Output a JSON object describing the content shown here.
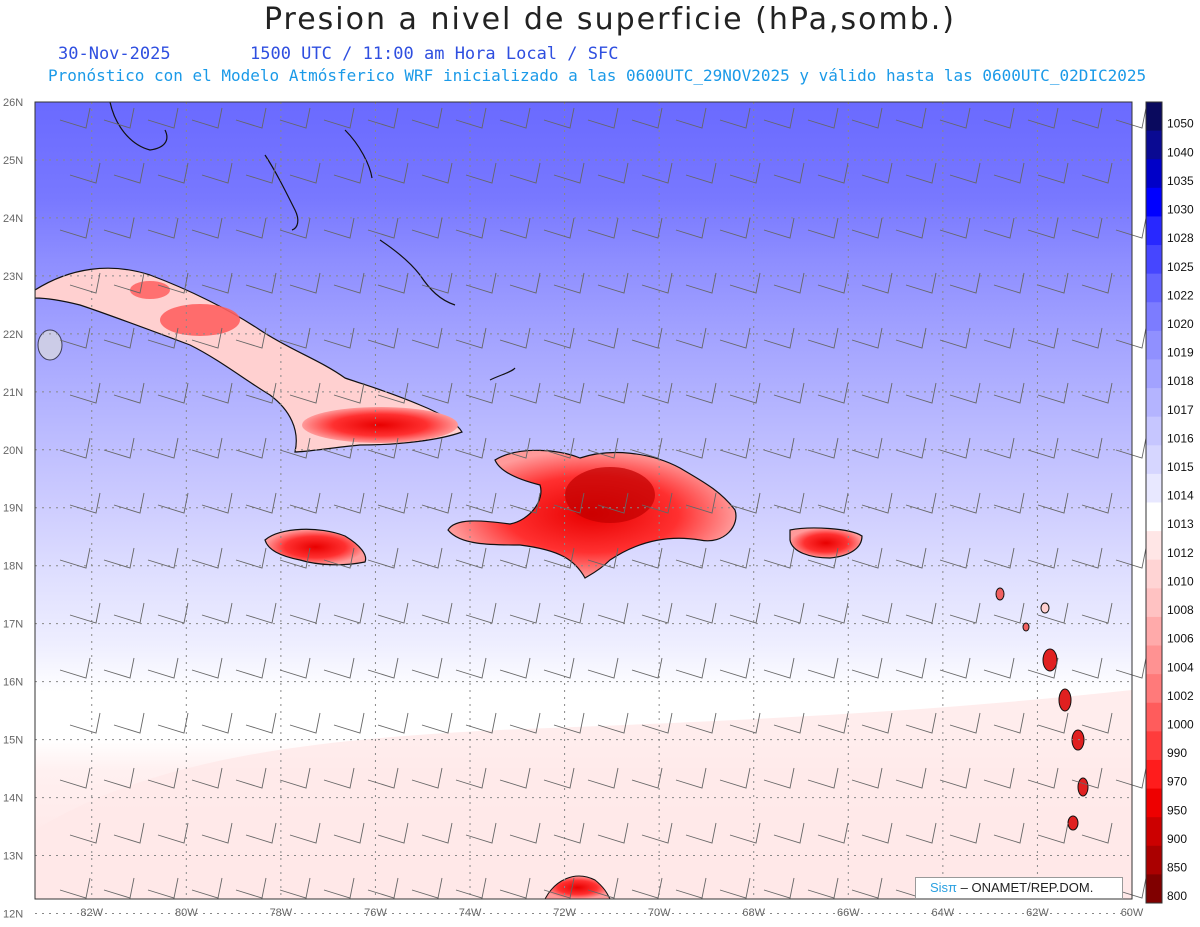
{
  "header": {
    "title": "Presion a nivel de superficie (hPa,somb.)",
    "date": "30-Nov-2025",
    "time_info": "1500 UTC / 11:00 am Hora Local / SFC",
    "subtitle": "Pronóstico con el Modelo Atmósferico WRF inicializado a las 0600UTC_29NOV2025 y válido hasta las  0600UTC_02DIC2025"
  },
  "map": {
    "lat_labels": [
      "26N",
      "25N",
      "24N",
      "23N",
      "22N",
      "21N",
      "20N",
      "19N",
      "18N",
      "17N",
      "16N",
      "15N",
      "14N",
      "13N",
      "12N"
    ],
    "lon_labels": [
      "82W",
      "80W",
      "78W",
      "76W",
      "74W",
      "72W",
      "70W",
      "68W",
      "66W",
      "64W",
      "62W",
      "60W"
    ],
    "lat_range": [
      12,
      26
    ],
    "lon_range": [
      -83.2,
      -60
    ],
    "grid": "dotted"
  },
  "colorbar": {
    "labels": [
      "1050",
      "1040",
      "1035",
      "1030",
      "1028",
      "1025",
      "1022",
      "1020",
      "1019",
      "1018",
      "1017",
      "1016",
      "1015",
      "1014",
      "1013",
      "1012",
      "1010",
      "1008",
      "1006",
      "1004",
      "1002",
      "1000",
      "990",
      "970",
      "950",
      "900",
      "850",
      "800"
    ],
    "colors": [
      "#0a0a5e",
      "#0a0a92",
      "#0000c8",
      "#0000ff",
      "#2828ff",
      "#4646ff",
      "#6464ff",
      "#7c7cff",
      "#9090ff",
      "#a2a2ff",
      "#b4b4ff",
      "#c6c6ff",
      "#d6d6ff",
      "#e8e8ff",
      "#ffffff",
      "#ffe6e6",
      "#ffd4d4",
      "#ffc2c2",
      "#ffaaaa",
      "#ff9292",
      "#ff7a7a",
      "#ff5c5c",
      "#ff3c3c",
      "#ff1c1c",
      "#ee0000",
      "#cc0000",
      "#aa0000",
      "#800000"
    ]
  },
  "credit": {
    "sis": "Sisπ",
    "text": " – ONAMET/REP.DOM."
  }
}
